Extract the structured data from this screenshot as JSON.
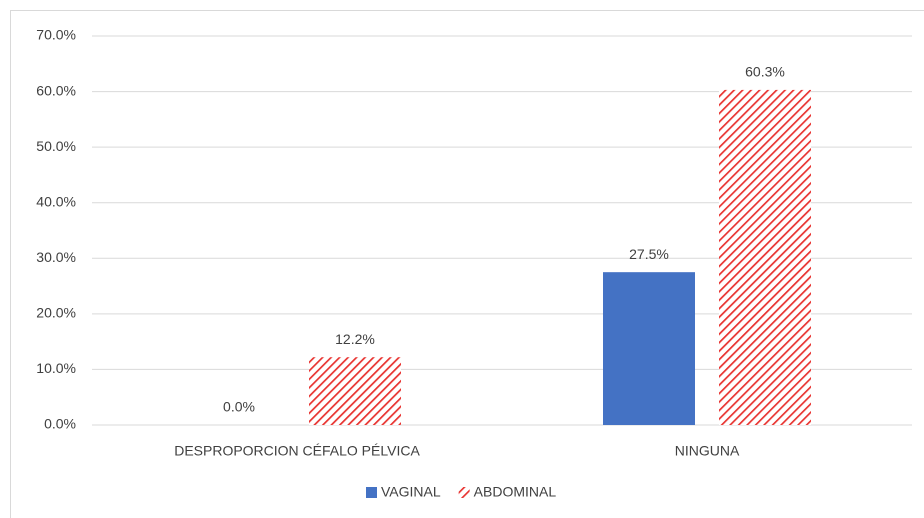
{
  "chart_data": {
    "type": "bar",
    "categories": [
      "DESPROPORCION CÉFALO PÉLVICA",
      "NINGUNA"
    ],
    "series": [
      {
        "name": "VAGINAL",
        "color": "#4472c4",
        "pattern": "solid",
        "values": [
          0,
          27.5
        ],
        "value_labels": [
          "0.0%",
          "27.5%"
        ]
      },
      {
        "name": "ABDOMINAL",
        "color": "#e8322f",
        "pattern": "hatch",
        "values": [
          12.2,
          60.3
        ],
        "value_labels": [
          "12.2%",
          "60.3%"
        ]
      }
    ],
    "ylim": [
      0,
      70
    ],
    "yticks": [
      {
        "value": 0,
        "label": "0.0%"
      },
      {
        "value": 10,
        "label": "10.0%"
      },
      {
        "value": 20,
        "label": "20.0%"
      },
      {
        "value": 30,
        "label": "30.0%"
      },
      {
        "value": 40,
        "label": "40.0%"
      },
      {
        "value": 50,
        "label": "50.0%"
      },
      {
        "value": 60,
        "label": "60.0%"
      },
      {
        "value": 70,
        "label": "70.0%"
      }
    ],
    "grid": true,
    "legend": "bottom"
  }
}
